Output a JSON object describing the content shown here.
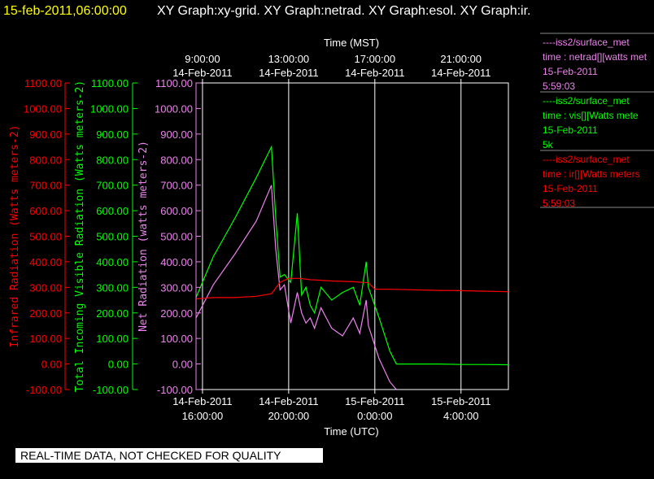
{
  "header": {
    "datetime": "15-feb-2011,06:00:00",
    "graphs": "XY Graph:xy-grid.  XY Graph:netrad.  XY Graph:esol.  XY Graph:ir."
  },
  "banner": "REAL-TIME DATA, NOT CHECKED FOR QUALITY",
  "legend": [
    {
      "station": "----iss2/surface_met",
      "var": "time : netrad[][watts met",
      "date": "15-Feb-2011",
      "extra": "5:59:03",
      "color": "#ee82ee"
    },
    {
      "station": "----iss2/surface_met",
      "var": "time : vis[][Watts mete",
      "date": "15-Feb-2011",
      "extra": "5k",
      "color": "#00ff00"
    },
    {
      "station": "----iss2/surface_met",
      "var": "time : ir[][Watts meters",
      "date": "15-Feb-2011",
      "extra": "5:59:03",
      "color": "#ff0000"
    }
  ],
  "colors": {
    "net": "#ee82ee",
    "vis": "#00ff00",
    "ir": "#ff0000",
    "grid": "#ffffff",
    "background": "#000000"
  },
  "chart_data": {
    "type": "line",
    "top_axis_title": "Time (MST)",
    "bottom_axis_title": "Time (UTC)",
    "top_ticks": [
      {
        "time": "9:00:00",
        "date": "14-Feb-2011",
        "x_hours_utc": 16
      },
      {
        "time": "13:00:00",
        "date": "14-Feb-2011",
        "x_hours_utc": 20
      },
      {
        "time": "17:00:00",
        "date": "14-Feb-2011",
        "x_hours_utc": 24
      },
      {
        "time": "21:00:00",
        "date": "14-Feb-2011",
        "x_hours_utc": 28
      }
    ],
    "bottom_ticks": [
      {
        "date": "14-Feb-2011",
        "time": "16:00:00",
        "x_hours_utc": 16
      },
      {
        "date": "14-Feb-2011",
        "time": "20:00:00",
        "x_hours_utc": 20
      },
      {
        "date": "15-Feb-2011",
        "time": "0:00:00",
        "x_hours_utc": 24
      },
      {
        "date": "15-Feb-2011",
        "time": "4:00:00",
        "x_hours_utc": 28
      }
    ],
    "xlim_hours_utc": [
      15.7,
      30.2
    ],
    "ylim": [
      -100,
      1100
    ],
    "y_ticks": [
      "1100.00",
      "1000.00",
      "900.00",
      "800.00",
      "700.00",
      "600.00",
      "500.00",
      "400.00",
      "300.00",
      "200.00",
      "100.00",
      "0.00",
      "-100.00"
    ],
    "axes": [
      {
        "label": "Infrared Radiation (Watts meters-2)",
        "color": "#ff0000"
      },
      {
        "label": "Total Incoming Visible Radiation (Watts meters-2)",
        "color": "#00ff00"
      },
      {
        "label": "Net Radiation (watts meters-2)",
        "color": "#ee82ee"
      }
    ],
    "grid": true,
    "series": [
      {
        "name": "time : vis[][Watts mete",
        "color": "#00ff00",
        "x": [
          15.7,
          16.5,
          17.5,
          18.5,
          19.2,
          19.4,
          19.6,
          19.8,
          20.1,
          20.4,
          20.6,
          20.8,
          21.0,
          21.2,
          21.5,
          22.0,
          22.5,
          23.0,
          23.3,
          23.6,
          23.7,
          24.2,
          24.7,
          25.0,
          26.0,
          27.0,
          28.0,
          29.0,
          30.2
        ],
        "y": [
          260,
          420,
          570,
          730,
          850,
          570,
          340,
          350,
          320,
          590,
          270,
          300,
          230,
          200,
          300,
          250,
          280,
          300,
          230,
          400,
          300,
          180,
          50,
          0,
          0,
          0,
          -2,
          -2,
          -3
        ]
      },
      {
        "name": "time : netrad[][watts met",
        "color": "#ee82ee",
        "x": [
          15.7,
          16.5,
          17.5,
          18.5,
          19.2,
          19.4,
          19.6,
          19.8,
          20.1,
          20.4,
          20.6,
          20.8,
          21.0,
          21.2,
          21.5,
          22.0,
          22.5,
          23.0,
          23.3,
          23.6,
          23.7,
          24.2,
          24.7,
          25.0
        ],
        "y": [
          180,
          310,
          430,
          560,
          700,
          450,
          290,
          310,
          160,
          280,
          200,
          160,
          180,
          140,
          220,
          140,
          110,
          180,
          120,
          250,
          150,
          20,
          -70,
          -110
        ]
      },
      {
        "name": "time : ir[][Watts meters",
        "color": "#ff0000",
        "x": [
          15.7,
          16.5,
          17.5,
          18.5,
          19.2,
          19.6,
          20.0,
          20.5,
          21.0,
          22.0,
          23.0,
          23.7,
          24.0,
          25.0,
          26.0,
          27.0,
          28.0,
          29.0,
          30.2
        ],
        "y": [
          255,
          260,
          260,
          265,
          275,
          320,
          335,
          335,
          330,
          325,
          322,
          318,
          293,
          292,
          290,
          288,
          287,
          285,
          283
        ]
      }
    ]
  }
}
